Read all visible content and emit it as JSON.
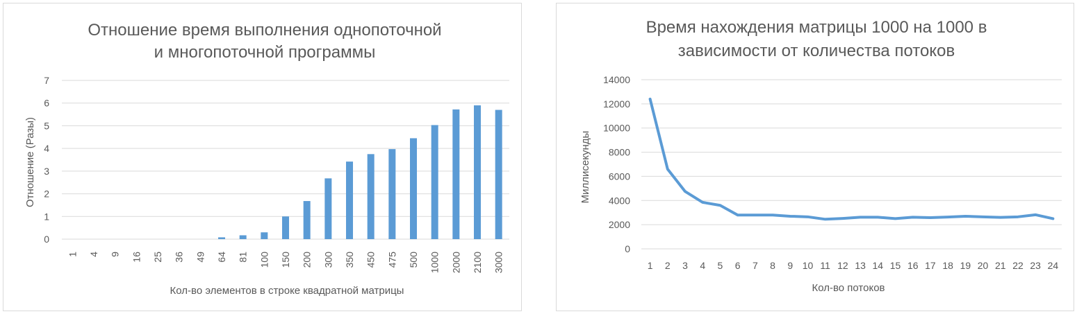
{
  "chart_data": [
    {
      "type": "bar",
      "title_lines": [
        "Отношение время выполнения однопоточной",
        "и многопоточной программы"
      ],
      "xlabel": "Кол-во элементов в строке квадратной матрицы",
      "ylabel": "Отношение (Разы)",
      "ylim": [
        0,
        7
      ],
      "yticks": [
        "0",
        "1",
        "2",
        "3",
        "4",
        "5",
        "6",
        "7"
      ],
      "grid": true,
      "legend": "none",
      "color": "#5b9bd5",
      "categories": [
        "1",
        "4",
        "9",
        "16",
        "25",
        "36",
        "49",
        "64",
        "81",
        "100",
        "150",
        "200",
        "300",
        "350",
        "450",
        "475",
        "500",
        "1000",
        "2000",
        "2100",
        "3000"
      ],
      "values": [
        0,
        0,
        0,
        0,
        0,
        0,
        0,
        0.08,
        0.17,
        0.3,
        1.0,
        1.68,
        2.68,
        3.42,
        3.75,
        3.97,
        4.45,
        5.03,
        5.72,
        5.9,
        5.7
      ]
    },
    {
      "type": "line",
      "title_lines": [
        "Время нахождения  матрицы 1000 на 1000 в",
        "зависимости от количества потоков"
      ],
      "xlabel": "Кол-во потоков",
      "ylabel": "Миллисекунды",
      "ylim": [
        0,
        14000
      ],
      "yticks": [
        "0",
        "2000",
        "4000",
        "6000",
        "8000",
        "10000",
        "12000",
        "14000"
      ],
      "grid": true,
      "legend": "none",
      "color": "#5b9bd5",
      "categories": [
        "1",
        "2",
        "3",
        "4",
        "5",
        "6",
        "7",
        "8",
        "9",
        "10",
        "11",
        "12",
        "13",
        "14",
        "15",
        "16",
        "17",
        "18",
        "19",
        "20",
        "21",
        "22",
        "23",
        "24"
      ],
      "values": [
        12400,
        6600,
        4750,
        3850,
        3600,
        2800,
        2800,
        2800,
        2700,
        2650,
        2450,
        2520,
        2620,
        2620,
        2500,
        2620,
        2580,
        2630,
        2700,
        2650,
        2600,
        2650,
        2820,
        2500
      ]
    }
  ]
}
